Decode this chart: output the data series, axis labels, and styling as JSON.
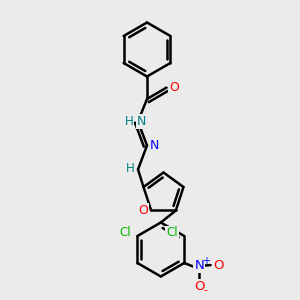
{
  "bg_color": "#ebebeb",
  "bond_color": "#000000",
  "bond_width": 1.8,
  "atom_colors": {
    "O": "#ff0000",
    "N": "#0000ff",
    "N_teal": "#008080",
    "Cl": "#00bb00",
    "C": "#000000",
    "H_teal": "#008080"
  },
  "figsize": [
    3.0,
    3.0
  ],
  "dpi": 100
}
